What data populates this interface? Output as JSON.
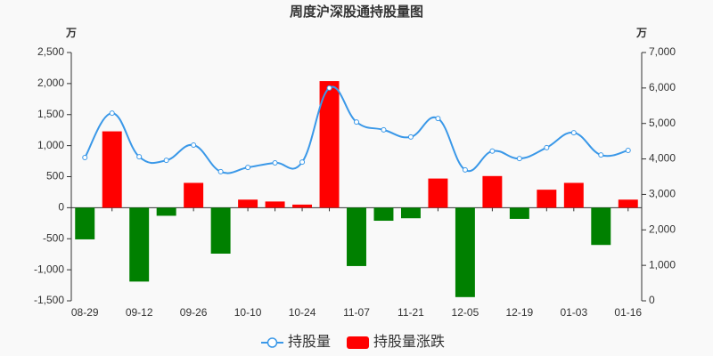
{
  "chart_data": {
    "type": "bar-line",
    "title": "周度沪深股通持股量图",
    "y_unit": "万",
    "y2_unit": "万",
    "categories": [
      "08-29",
      null,
      "09-12",
      null,
      "09-26",
      null,
      "10-10",
      null,
      "10-24",
      null,
      "11-07",
      null,
      "11-21",
      null,
      "12-05",
      null,
      "12-19",
      null,
      "01-03",
      null,
      "01-16"
    ],
    "series": [
      {
        "name": "持股量",
        "type": "line",
        "axis": "y2",
        "color": "#3a98e8",
        "values": [
          4040,
          5290,
          4060,
          3960,
          4390,
          3640,
          3760,
          3890,
          3910,
          6000,
          5040,
          4820,
          4620,
          5140,
          3690,
          4220,
          4010,
          4320,
          4740,
          4110,
          4240
        ]
      },
      {
        "name": "持股量涨跌",
        "type": "bar",
        "axis": "y",
        "color": "#ff0000",
        "negative_color": "#008000",
        "values": [
          -510,
          1230,
          -1190,
          -130,
          400,
          -740,
          130,
          100,
          50,
          2040,
          -940,
          -210,
          -170,
          470,
          -1440,
          510,
          -180,
          290,
          400,
          -600,
          130
        ]
      }
    ],
    "ylim": [
      -1500,
      2500
    ],
    "yticks": [
      {
        "value": -1500,
        "label": "-1,500"
      },
      {
        "value": -1000,
        "label": "-1,000"
      },
      -500,
      0,
      500,
      {
        "value": 1000,
        "label": "1,000"
      },
      {
        "value": 1500,
        "label": "1,500"
      },
      {
        "value": 2000,
        "label": "2,000"
      },
      {
        "value": 2500,
        "label": "2,500"
      }
    ],
    "y2lim": [
      0,
      7000
    ],
    "y2ticks": [
      0,
      {
        "value": 1000,
        "label": "1,000"
      },
      {
        "value": 2000,
        "label": "2,000"
      },
      {
        "value": 3000,
        "label": "3,000"
      },
      {
        "value": 4000,
        "label": "4,000"
      },
      {
        "value": 5000,
        "label": "5,000"
      },
      {
        "value": 6000,
        "label": "6,000"
      },
      {
        "value": 7000,
        "label": "7,000"
      }
    ],
    "legend": "bottom"
  }
}
